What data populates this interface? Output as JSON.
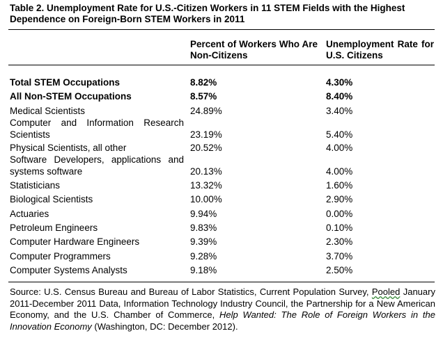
{
  "title": "Table 2. Unemployment Rate for U.S.-Citizen Workers in 11 STEM Fields with the Highest Dependence on Foreign-Born STEM Workers in 2011",
  "headers": {
    "col_pct": "Percent of Workers Who Are Non-Citizens",
    "col_rate": "Unemployment Rate for U.S. Citizens"
  },
  "rows": [
    {
      "label": "Total STEM Occupations",
      "pct": "8.82%",
      "rate": "4.30%"
    },
    {
      "label": "All Non-STEM Occupations",
      "pct": "8.57%",
      "rate": "8.40%"
    },
    {
      "label": "Medical Scientists",
      "pct": "24.89%",
      "rate": "3.40%"
    },
    {
      "label": "Computer and Information Research Scientists",
      "pct": "23.19%",
      "rate": "5.40%"
    },
    {
      "label": "Physical Scientists, all other",
      "pct": "20.52%",
      "rate": "4.00%"
    },
    {
      "label": "Software Developers, applications and systems software",
      "pct": "20.13%",
      "rate": "4.00%"
    },
    {
      "label": "Statisticians",
      "pct": "13.32%",
      "rate": "1.60%"
    },
    {
      "label": "Biological Scientists",
      "pct": "10.00%",
      "rate": "2.90%"
    },
    {
      "label": "Actuaries",
      "pct": "9.94%",
      "rate": "0.00%"
    },
    {
      "label": "Petroleum Engineers",
      "pct": "9.83%",
      "rate": "0.10%"
    },
    {
      "label": "Computer Hardware Engineers",
      "pct": "9.39%",
      "rate": "2.30%"
    },
    {
      "label": "Computer Programmers",
      "pct": "9.28%",
      "rate": "3.70%"
    },
    {
      "label": "Computer Systems Analysts",
      "pct": "9.18%",
      "rate": "2.50%"
    }
  ],
  "source": {
    "part1": "Source: U.S. Census Bureau and Bureau of Labor Statistics, Current Population Survey,",
    "pooled": "Pooled",
    "part2": " January 2011-December 2011 Data, Information Technology Industry Council, the Partnership for a New American Economy, and the U.S. Chamber of Commerce, ",
    "italic": "Help Wanted: The Role of Foreign Workers in the Innovation Economy",
    "part3": " (Washington, DC: December 2012)."
  }
}
